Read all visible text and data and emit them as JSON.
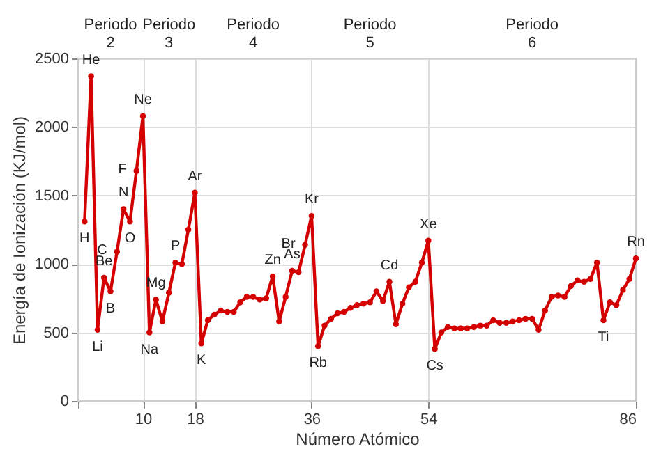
{
  "chart_data": {
    "type": "line",
    "xlabel": "Número Atómico",
    "ylabel": "Energía de Ionización (KJ/mol)",
    "x": [
      1,
      2,
      3,
      4,
      5,
      6,
      7,
      8,
      9,
      10,
      11,
      12,
      13,
      14,
      15,
      16,
      17,
      18,
      19,
      20,
      21,
      22,
      23,
      24,
      25,
      26,
      27,
      28,
      29,
      30,
      31,
      32,
      33,
      34,
      35,
      36,
      37,
      38,
      39,
      40,
      41,
      42,
      43,
      44,
      45,
      46,
      47,
      48,
      49,
      50,
      51,
      52,
      53,
      54,
      55,
      56,
      57,
      58,
      59,
      60,
      61,
      62,
      63,
      64,
      65,
      66,
      67,
      68,
      69,
      70,
      71,
      72,
      73,
      74,
      75,
      76,
      77,
      78,
      79,
      80,
      81,
      82,
      83,
      84,
      85,
      86
    ],
    "series": [
      {
        "color": "#d40000",
        "values": [
          1310,
          2370,
          520,
          900,
          800,
          1090,
          1400,
          1310,
          1680,
          2080,
          500,
          740,
          580,
          790,
          1010,
          1000,
          1250,
          1520,
          420,
          590,
          630,
          660,
          650,
          650,
          720,
          760,
          760,
          740,
          750,
          910,
          580,
          760,
          950,
          940,
          1140,
          1350,
          400,
          550,
          600,
          640,
          650,
          680,
          700,
          710,
          720,
          800,
          730,
          870,
          560,
          710,
          830,
          870,
          1010,
          1170,
          380,
          500,
          540,
          530,
          530,
          530,
          540,
          550,
          550,
          590,
          570,
          570,
          580,
          590,
          600,
          600,
          520,
          660,
          760,
          770,
          760,
          840,
          880,
          870,
          890,
          1010,
          590,
          720,
          700,
          810,
          890,
          1040
        ]
      }
    ],
    "xlim": [
      0,
      86
    ],
    "xticks": [
      {
        "value": 0,
        "label": null
      },
      10,
      18,
      36,
      54,
      86
    ],
    "ylim": [
      0,
      2500
    ],
    "yticks": [
      0,
      500,
      1000,
      1500,
      2000,
      2500
    ],
    "grid": true,
    "marker": "circle",
    "line_style": "solid",
    "annotations": [
      {
        "text": "H",
        "x": 1,
        "y": 1310
      },
      {
        "text": "He",
        "x": 2,
        "y": 2370
      },
      {
        "text": "Li",
        "x": 3,
        "y": 520
      },
      {
        "text": "Be",
        "x": 4,
        "y": 900
      },
      {
        "text": "B",
        "x": 5,
        "y": 800
      },
      {
        "text": "C",
        "x": 6,
        "y": 1090
      },
      {
        "text": "N",
        "x": 7,
        "y": 1400
      },
      {
        "text": "O",
        "x": 8,
        "y": 1310
      },
      {
        "text": "F",
        "x": 9,
        "y": 1680
      },
      {
        "text": "Ne",
        "x": 10,
        "y": 2080
      },
      {
        "text": "Na",
        "x": 11,
        "y": 500
      },
      {
        "text": "Mg",
        "x": 12,
        "y": 740
      },
      {
        "text": "P",
        "x": 15,
        "y": 1010
      },
      {
        "text": "Ar",
        "x": 18,
        "y": 1520
      },
      {
        "text": "K",
        "x": 19,
        "y": 420
      },
      {
        "text": "Zn",
        "x": 30,
        "y": 910
      },
      {
        "text": "As",
        "x": 33,
        "y": 950
      },
      {
        "text": "Br",
        "x": 35,
        "y": 1140
      },
      {
        "text": "Kr",
        "x": 36,
        "y": 1350
      },
      {
        "text": "Rb",
        "x": 37,
        "y": 400
      },
      {
        "text": "Cd",
        "x": 48,
        "y": 870
      },
      {
        "text": "Xe",
        "x": 54,
        "y": 1170
      },
      {
        "text": "Cs",
        "x": 55,
        "y": 380
      },
      {
        "text": "Ti",
        "x": 81,
        "y": 590
      },
      {
        "text": "Rn",
        "x": 86,
        "y": 1040
      },
      "Periodo\n2",
      "Periodo\n3",
      "Periodo\n4",
      "Periodo\n5",
      "Periodo\n6"
    ]
  }
}
